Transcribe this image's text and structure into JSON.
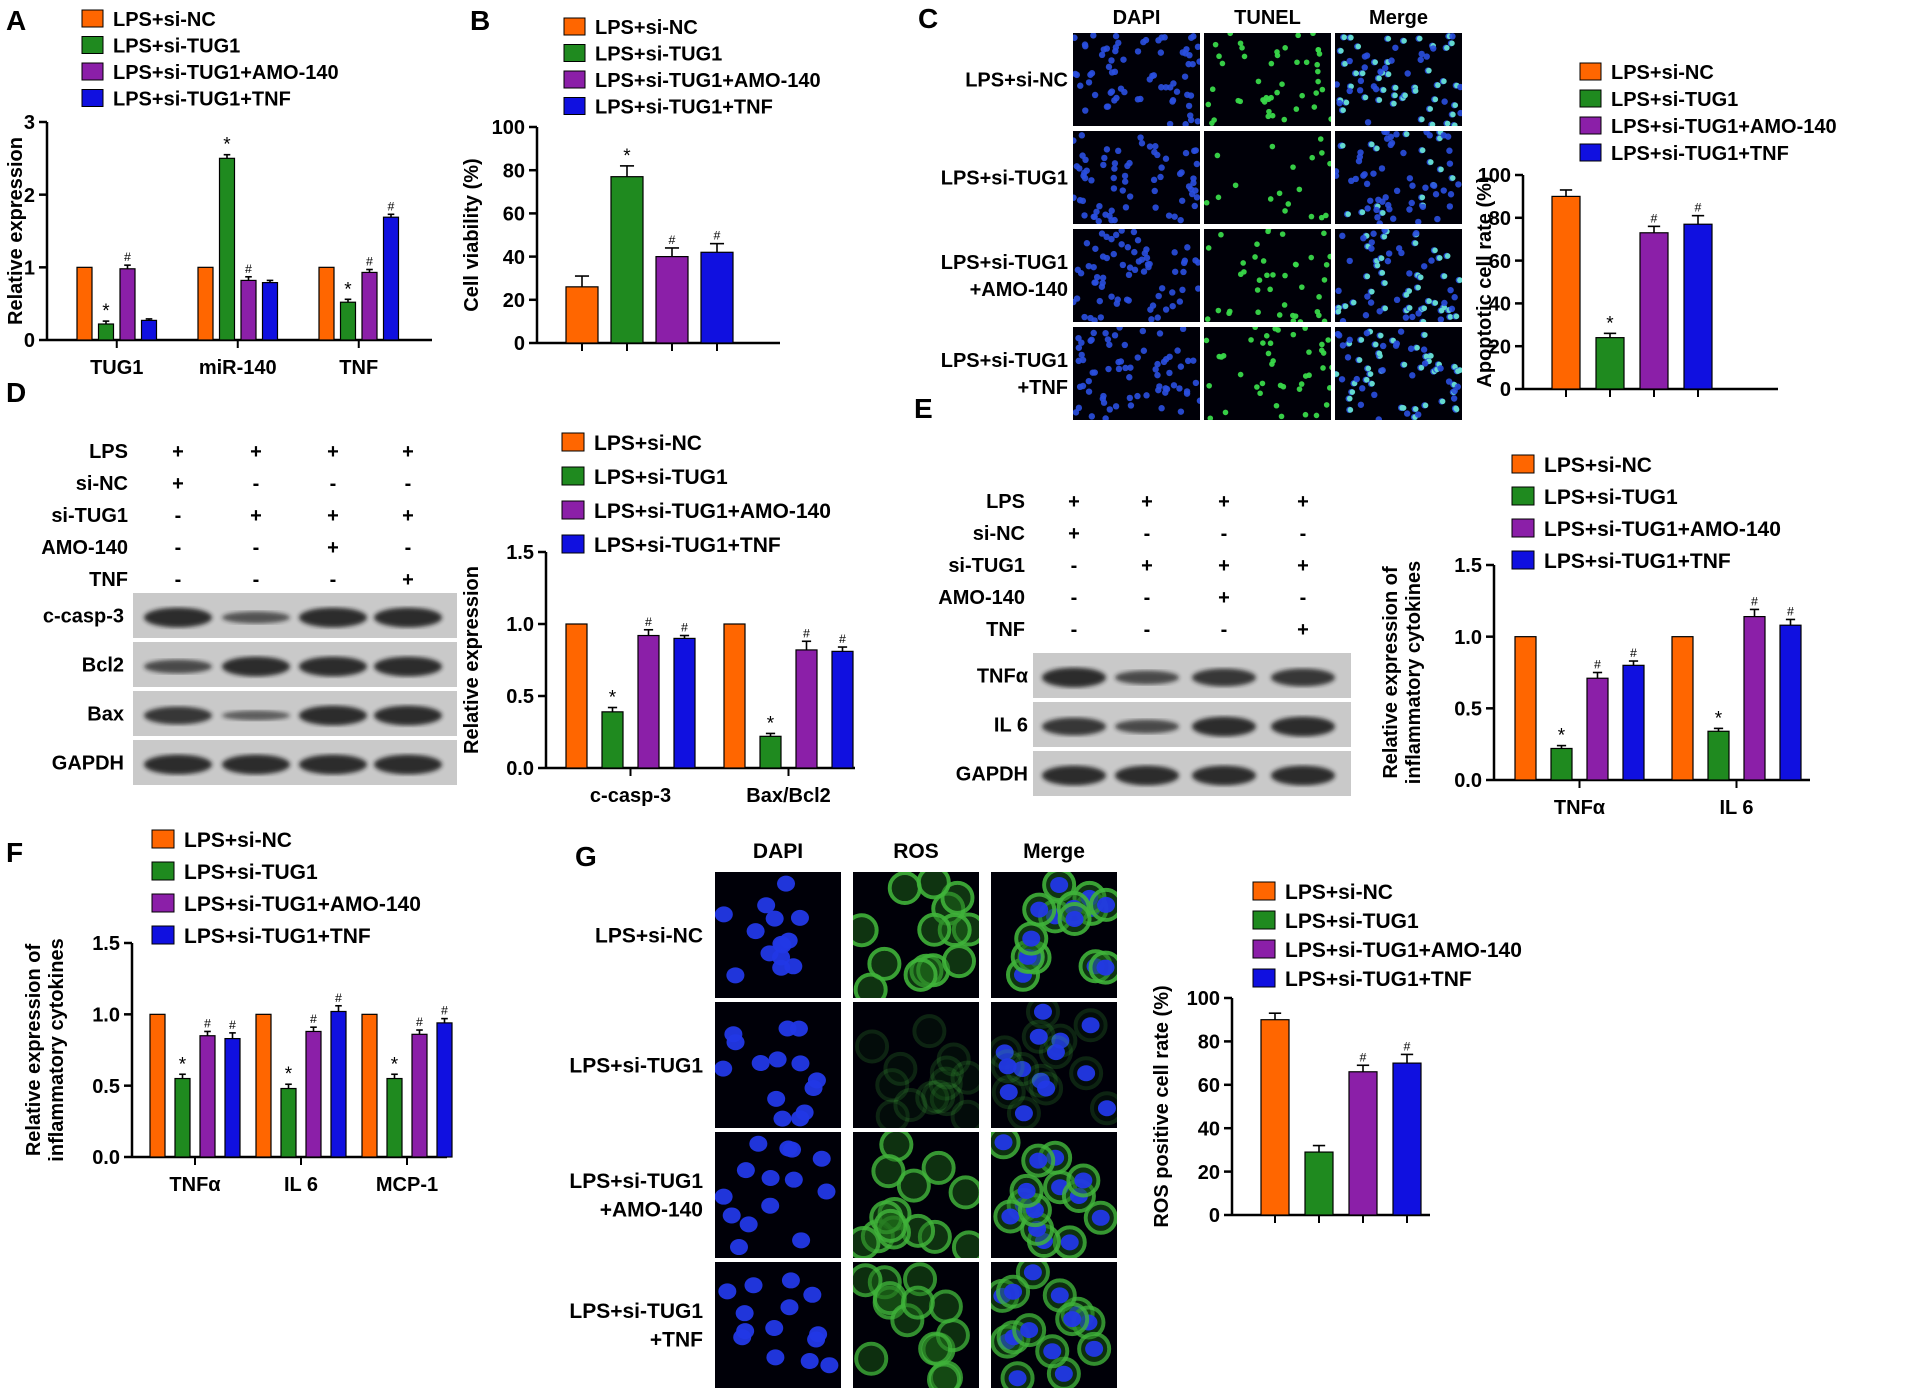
{
  "figure": {
    "panel_letters": [
      "A",
      "B",
      "C",
      "D",
      "E",
      "F",
      "G"
    ],
    "groups": [
      "LPS+si-NC",
      "LPS+si-TUG1",
      "LPS+si-TUG1+AMO-140",
      "LPS+si-TUG1+TNF"
    ],
    "colors": [
      "#FF6600",
      "#1F8A1F",
      "#8B1FA8",
      "#1010E0"
    ],
    "sig_star": "*",
    "sig_hash": "#"
  },
  "chart_data": [
    {
      "panel": "A",
      "type": "bar",
      "title": "",
      "ylabel": "Relative expression",
      "xlabel": "",
      "categories": [
        "TUG1",
        "miR-140",
        "TNF"
      ],
      "ylim": [
        0,
        3
      ],
      "yticks": [
        0,
        1,
        2,
        3
      ],
      "grid": false,
      "legend": "top-left",
      "series": [
        {
          "name": "LPS+si-NC",
          "values": [
            1.0,
            1.0,
            1.0
          ],
          "errors": [
            0,
            0,
            0
          ]
        },
        {
          "name": "LPS+si-TUG1",
          "values": [
            0.22,
            2.5,
            0.52
          ],
          "errors": [
            0.04,
            0.05,
            0.04
          ]
        },
        {
          "name": "LPS+si-TUG1+AMO-140",
          "values": [
            0.98,
            0.82,
            0.93
          ],
          "errors": [
            0.05,
            0.05,
            0.04
          ]
        },
        {
          "name": "LPS+si-TUG1+TNF",
          "values": [
            0.27,
            0.79,
            1.69
          ],
          "errors": [
            0.02,
            0.03,
            0.04
          ]
        }
      ],
      "annotations": [
        [
          "",
          "*",
          "#",
          ""
        ],
        [
          "",
          "*",
          "#",
          ""
        ],
        [
          "",
          "*",
          "#",
          "#"
        ]
      ]
    },
    {
      "panel": "B",
      "type": "bar",
      "title": "",
      "ylabel": "Cell viability (%)",
      "xlabel": "",
      "categories": [
        ""
      ],
      "ylim": [
        0,
        100
      ],
      "yticks": [
        0,
        20,
        40,
        60,
        80,
        100
      ],
      "grid": false,
      "legend": "top-left",
      "series": [
        {
          "name": "LPS+si-NC",
          "values": [
            26
          ],
          "errors": [
            5
          ]
        },
        {
          "name": "LPS+si-TUG1",
          "values": [
            77
          ],
          "errors": [
            5
          ]
        },
        {
          "name": "LPS+si-TUG1+AMO-140",
          "values": [
            40
          ],
          "errors": [
            4
          ]
        },
        {
          "name": "LPS+si-TUG1+TNF",
          "values": [
            42
          ],
          "errors": [
            4
          ]
        }
      ],
      "annotations": [
        [
          "",
          "*",
          "#",
          "#"
        ]
      ]
    },
    {
      "panel": "C",
      "type": "bar",
      "title": "",
      "ylabel": "Apoptotic cell rate (%)",
      "xlabel": "",
      "categories": [
        ""
      ],
      "ylim": [
        0,
        100
      ],
      "yticks": [
        0,
        20,
        40,
        60,
        80,
        100
      ],
      "grid": false,
      "legend": "top",
      "series": [
        {
          "name": "LPS+si-NC",
          "values": [
            90
          ],
          "errors": [
            3
          ]
        },
        {
          "name": "LPS+si-TUG1",
          "values": [
            24
          ],
          "errors": [
            2
          ]
        },
        {
          "name": "LPS+si-TUG1+AMO-140",
          "values": [
            73
          ],
          "errors": [
            3
          ]
        },
        {
          "name": "LPS+si-TUG1+TNF",
          "values": [
            77
          ],
          "errors": [
            4
          ]
        }
      ],
      "annotations": [
        [
          "",
          "*",
          "#",
          "#"
        ]
      ]
    },
    {
      "panel": "D",
      "type": "bar",
      "title": "",
      "ylabel": "Relative expression",
      "xlabel": "",
      "categories": [
        "c-casp-3",
        "Bax/Bcl2"
      ],
      "ylim": [
        0,
        1.5
      ],
      "yticks": [
        0.0,
        0.5,
        1.0,
        1.5
      ],
      "grid": false,
      "legend": "top",
      "series": [
        {
          "name": "LPS+si-NC",
          "values": [
            1.0,
            1.0
          ],
          "errors": [
            0,
            0
          ]
        },
        {
          "name": "LPS+si-TUG1",
          "values": [
            0.39,
            0.22
          ],
          "errors": [
            0.03,
            0.02
          ]
        },
        {
          "name": "LPS+si-TUG1+AMO-140",
          "values": [
            0.92,
            0.82
          ],
          "errors": [
            0.04,
            0.06
          ]
        },
        {
          "name": "LPS+si-TUG1+TNF",
          "values": [
            0.9,
            0.81
          ],
          "errors": [
            0.02,
            0.03
          ]
        }
      ],
      "annotations": [
        [
          "",
          "*",
          "#",
          "#"
        ],
        [
          "",
          "*",
          "#",
          "#"
        ]
      ]
    },
    {
      "panel": "E",
      "type": "bar",
      "title": "",
      "ylabel": "Relative expression of inflammatory cytokines",
      "xlabel": "",
      "categories": [
        "TNFα",
        "IL 6"
      ],
      "ylim": [
        0,
        1.5
      ],
      "yticks": [
        0.0,
        0.5,
        1.0,
        1.5
      ],
      "grid": false,
      "legend": "top",
      "series": [
        {
          "name": "LPS+si-NC",
          "values": [
            1.0,
            1.0
          ],
          "errors": [
            0,
            0
          ]
        },
        {
          "name": "LPS+si-TUG1",
          "values": [
            0.22,
            0.34
          ],
          "errors": [
            0.02,
            0.02
          ]
        },
        {
          "name": "LPS+si-TUG1+AMO-140",
          "values": [
            0.71,
            1.14
          ],
          "errors": [
            0.04,
            0.05
          ]
        },
        {
          "name": "LPS+si-TUG1+TNF",
          "values": [
            0.8,
            1.08
          ],
          "errors": [
            0.03,
            0.04
          ]
        }
      ],
      "annotations": [
        [
          "",
          "*",
          "#",
          "#"
        ],
        [
          "",
          "*",
          "#",
          "#"
        ]
      ]
    },
    {
      "panel": "F",
      "type": "bar",
      "title": "",
      "ylabel": "Relative expression of inflammatory cytokines",
      "xlabel": "",
      "categories": [
        "TNFα",
        "IL 6",
        "MCP-1"
      ],
      "ylim": [
        0,
        1.5
      ],
      "yticks": [
        0.0,
        0.5,
        1.0,
        1.5
      ],
      "grid": false,
      "legend": "top-left",
      "series": [
        {
          "name": "LPS+si-NC",
          "values": [
            1.0,
            1.0,
            1.0
          ],
          "errors": [
            0,
            0,
            0
          ]
        },
        {
          "name": "LPS+si-TUG1",
          "values": [
            0.55,
            0.48,
            0.55
          ],
          "errors": [
            0.03,
            0.03,
            0.03
          ]
        },
        {
          "name": "LPS+si-TUG1+AMO-140",
          "values": [
            0.85,
            0.88,
            0.86
          ],
          "errors": [
            0.03,
            0.03,
            0.03
          ]
        },
        {
          "name": "LPS+si-TUG1+TNF",
          "values": [
            0.83,
            1.02,
            0.94
          ],
          "errors": [
            0.04,
            0.04,
            0.03
          ]
        }
      ],
      "annotations": [
        [
          "",
          "*",
          "#",
          "#"
        ],
        [
          "",
          "*",
          "#",
          "#"
        ],
        [
          "",
          "*",
          "#",
          "#"
        ]
      ]
    },
    {
      "panel": "G",
      "type": "bar",
      "title": "",
      "ylabel": "ROS positive cell rate (%)",
      "xlabel": "",
      "categories": [
        ""
      ],
      "ylim": [
        0,
        100
      ],
      "yticks": [
        0,
        20,
        40,
        60,
        80,
        100
      ],
      "grid": false,
      "legend": "top",
      "series": [
        {
          "name": "LPS+si-NC",
          "values": [
            90
          ],
          "errors": [
            3
          ]
        },
        {
          "name": "LPS+si-TUG1",
          "values": [
            29
          ],
          "errors": [
            3
          ]
        },
        {
          "name": "LPS+si-TUG1+AMO-140",
          "values": [
            66
          ],
          "errors": [
            3
          ]
        },
        {
          "name": "LPS+si-TUG1+TNF",
          "values": [
            70
          ],
          "errors": [
            4
          ]
        }
      ],
      "annotations": [
        [
          "",
          "",
          "#",
          "#"
        ]
      ]
    }
  ],
  "micrographs": {
    "C": {
      "columns": [
        "DAPI",
        "TUNEL",
        "Merge"
      ],
      "rows": [
        "LPS+si-NC",
        "LPS+si-TUG1",
        "LPS+si-TUG1\n+AMO-140",
        "LPS+si-TUG1\n+TNF"
      ]
    },
    "G": {
      "columns": [
        "DAPI",
        "ROS",
        "Merge"
      ],
      "rows": [
        "LPS+si-NC",
        "LPS+si-TUG1",
        "LPS+si-TUG1\n+AMO-140",
        "LPS+si-TUG1\n+TNF"
      ]
    }
  },
  "blots": {
    "D": {
      "conditions": [
        {
          "label": "LPS",
          "marks": [
            "+",
            "+",
            "+",
            "+"
          ]
        },
        {
          "label": "si-NC",
          "marks": [
            "+",
            "-",
            "-",
            "-"
          ]
        },
        {
          "label": "si-TUG1",
          "marks": [
            "-",
            "+",
            "+",
            "+"
          ]
        },
        {
          "label": "AMO-140",
          "marks": [
            "-",
            "-",
            "+",
            "-"
          ]
        },
        {
          "label": "TNF",
          "marks": [
            "-",
            "-",
            "-",
            "+"
          ]
        }
      ],
      "bands": [
        "c-casp-3",
        "Bcl2",
        "Bax",
        "GAPDH"
      ]
    },
    "E": {
      "conditions": [
        {
          "label": "LPS",
          "marks": [
            "+",
            "+",
            "+",
            "+"
          ]
        },
        {
          "label": "si-NC",
          "marks": [
            "+",
            "-",
            "-",
            "-"
          ]
        },
        {
          "label": "si-TUG1",
          "marks": [
            "-",
            "+",
            "+",
            "+"
          ]
        },
        {
          "label": "AMO-140",
          "marks": [
            "-",
            "-",
            "+",
            "-"
          ]
        },
        {
          "label": "TNF",
          "marks": [
            "-",
            "-",
            "-",
            "+"
          ]
        }
      ],
      "bands": [
        "TNFα",
        "IL 6",
        "GAPDH"
      ]
    }
  }
}
